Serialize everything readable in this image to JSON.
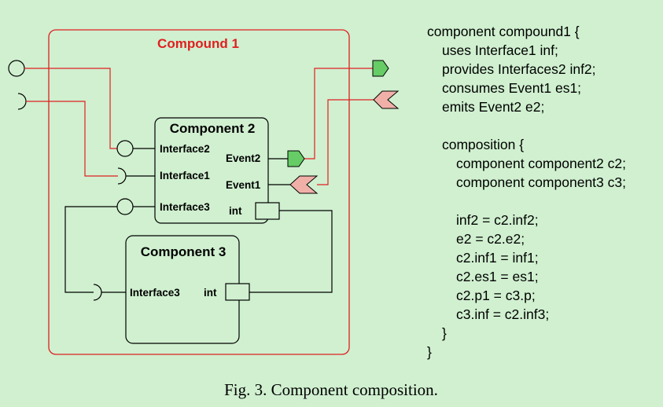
{
  "colors": {
    "background": "#d0f0d0",
    "compound_border": "#e02020",
    "compound_title": "#e02020",
    "wire_red": "#e02020",
    "wire_black": "#000000",
    "event_out_fill": "#66cc66",
    "event_in_fill": "#f0b0a8"
  },
  "diagram": {
    "compound": {
      "title": "Compound 1"
    },
    "component2": {
      "title": "Component 2",
      "ports": {
        "interface2": "Interface2",
        "interface1": "Interface1",
        "interface3": "Interface3",
        "event2": "Event2",
        "event1": "Event1",
        "int": "int"
      }
    },
    "component3": {
      "title": "Component 3",
      "ports": {
        "interface3": "Interface3",
        "int": "int"
      }
    }
  },
  "code": {
    "lines": [
      "component compound1 {",
      "uses Interface1 inf;",
      "provides Interfaces2 inf2;",
      "consumes Event1 es1;",
      "emits Event2 e2;",
      "",
      "composition {",
      "component component2 c2;",
      "component component3 c3;",
      "",
      "inf2 = c2.inf2;",
      "e2 = c2.e2;",
      "c2.inf1 = inf1;",
      "c2.es1 = es1;",
      "c2.p1 = c3.p;",
      "c3.inf = c2.inf3;",
      "}",
      "}"
    ]
  },
  "caption": "Fig. 3. Component composition."
}
